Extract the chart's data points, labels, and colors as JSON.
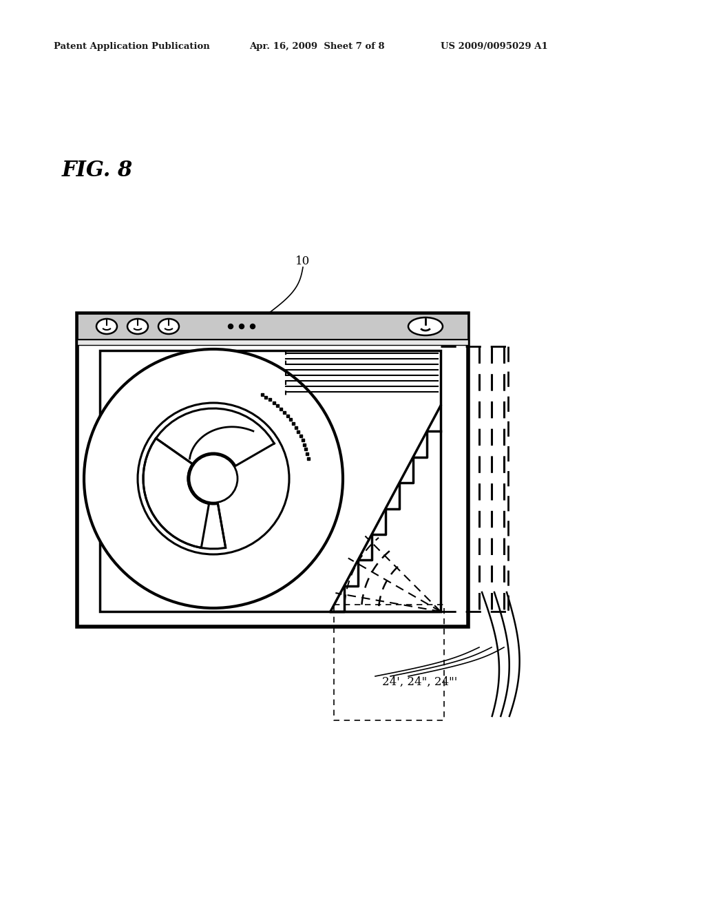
{
  "background_color": "#ffffff",
  "header_left": "Patent Application Publication",
  "header_mid": "Apr. 16, 2009  Sheet 7 of 8",
  "header_right": "US 2009/0095029 A1",
  "fig_label": "FIG. 8",
  "label_10": "10",
  "label_24": "24', 24\", 24''"
}
